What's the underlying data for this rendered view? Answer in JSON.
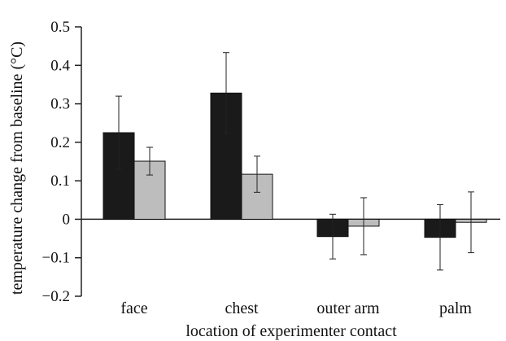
{
  "chart_data": {
    "type": "bar",
    "title": "",
    "xlabel": "location of experimenter contact",
    "ylabel": "temperature change from baseline (°C)",
    "categories": [
      "face",
      "chest",
      "outer arm",
      "palm"
    ],
    "ylim": [
      -0.2,
      0.5
    ],
    "yticks": [
      -0.2,
      -0.1,
      0,
      0.1,
      0.2,
      0.3,
      0.4,
      0.5
    ],
    "ytick_labels": [
      "−0.2",
      "−0.1",
      "0",
      "0.1",
      "0.2",
      "0.3",
      "0.4",
      "0.5"
    ],
    "grid": false,
    "legend": "none",
    "series": [
      {
        "color": "#1a1a1a",
        "values": [
          0.225,
          0.328,
          -0.045,
          -0.047
        ],
        "errors": [
          0.095,
          0.105,
          0.058,
          0.085
        ]
      },
      {
        "color": "#bdbdbd",
        "values": [
          0.151,
          0.117,
          -0.018,
          -0.008
        ],
        "errors": [
          0.036,
          0.047,
          0.074,
          0.079
        ]
      }
    ]
  }
}
